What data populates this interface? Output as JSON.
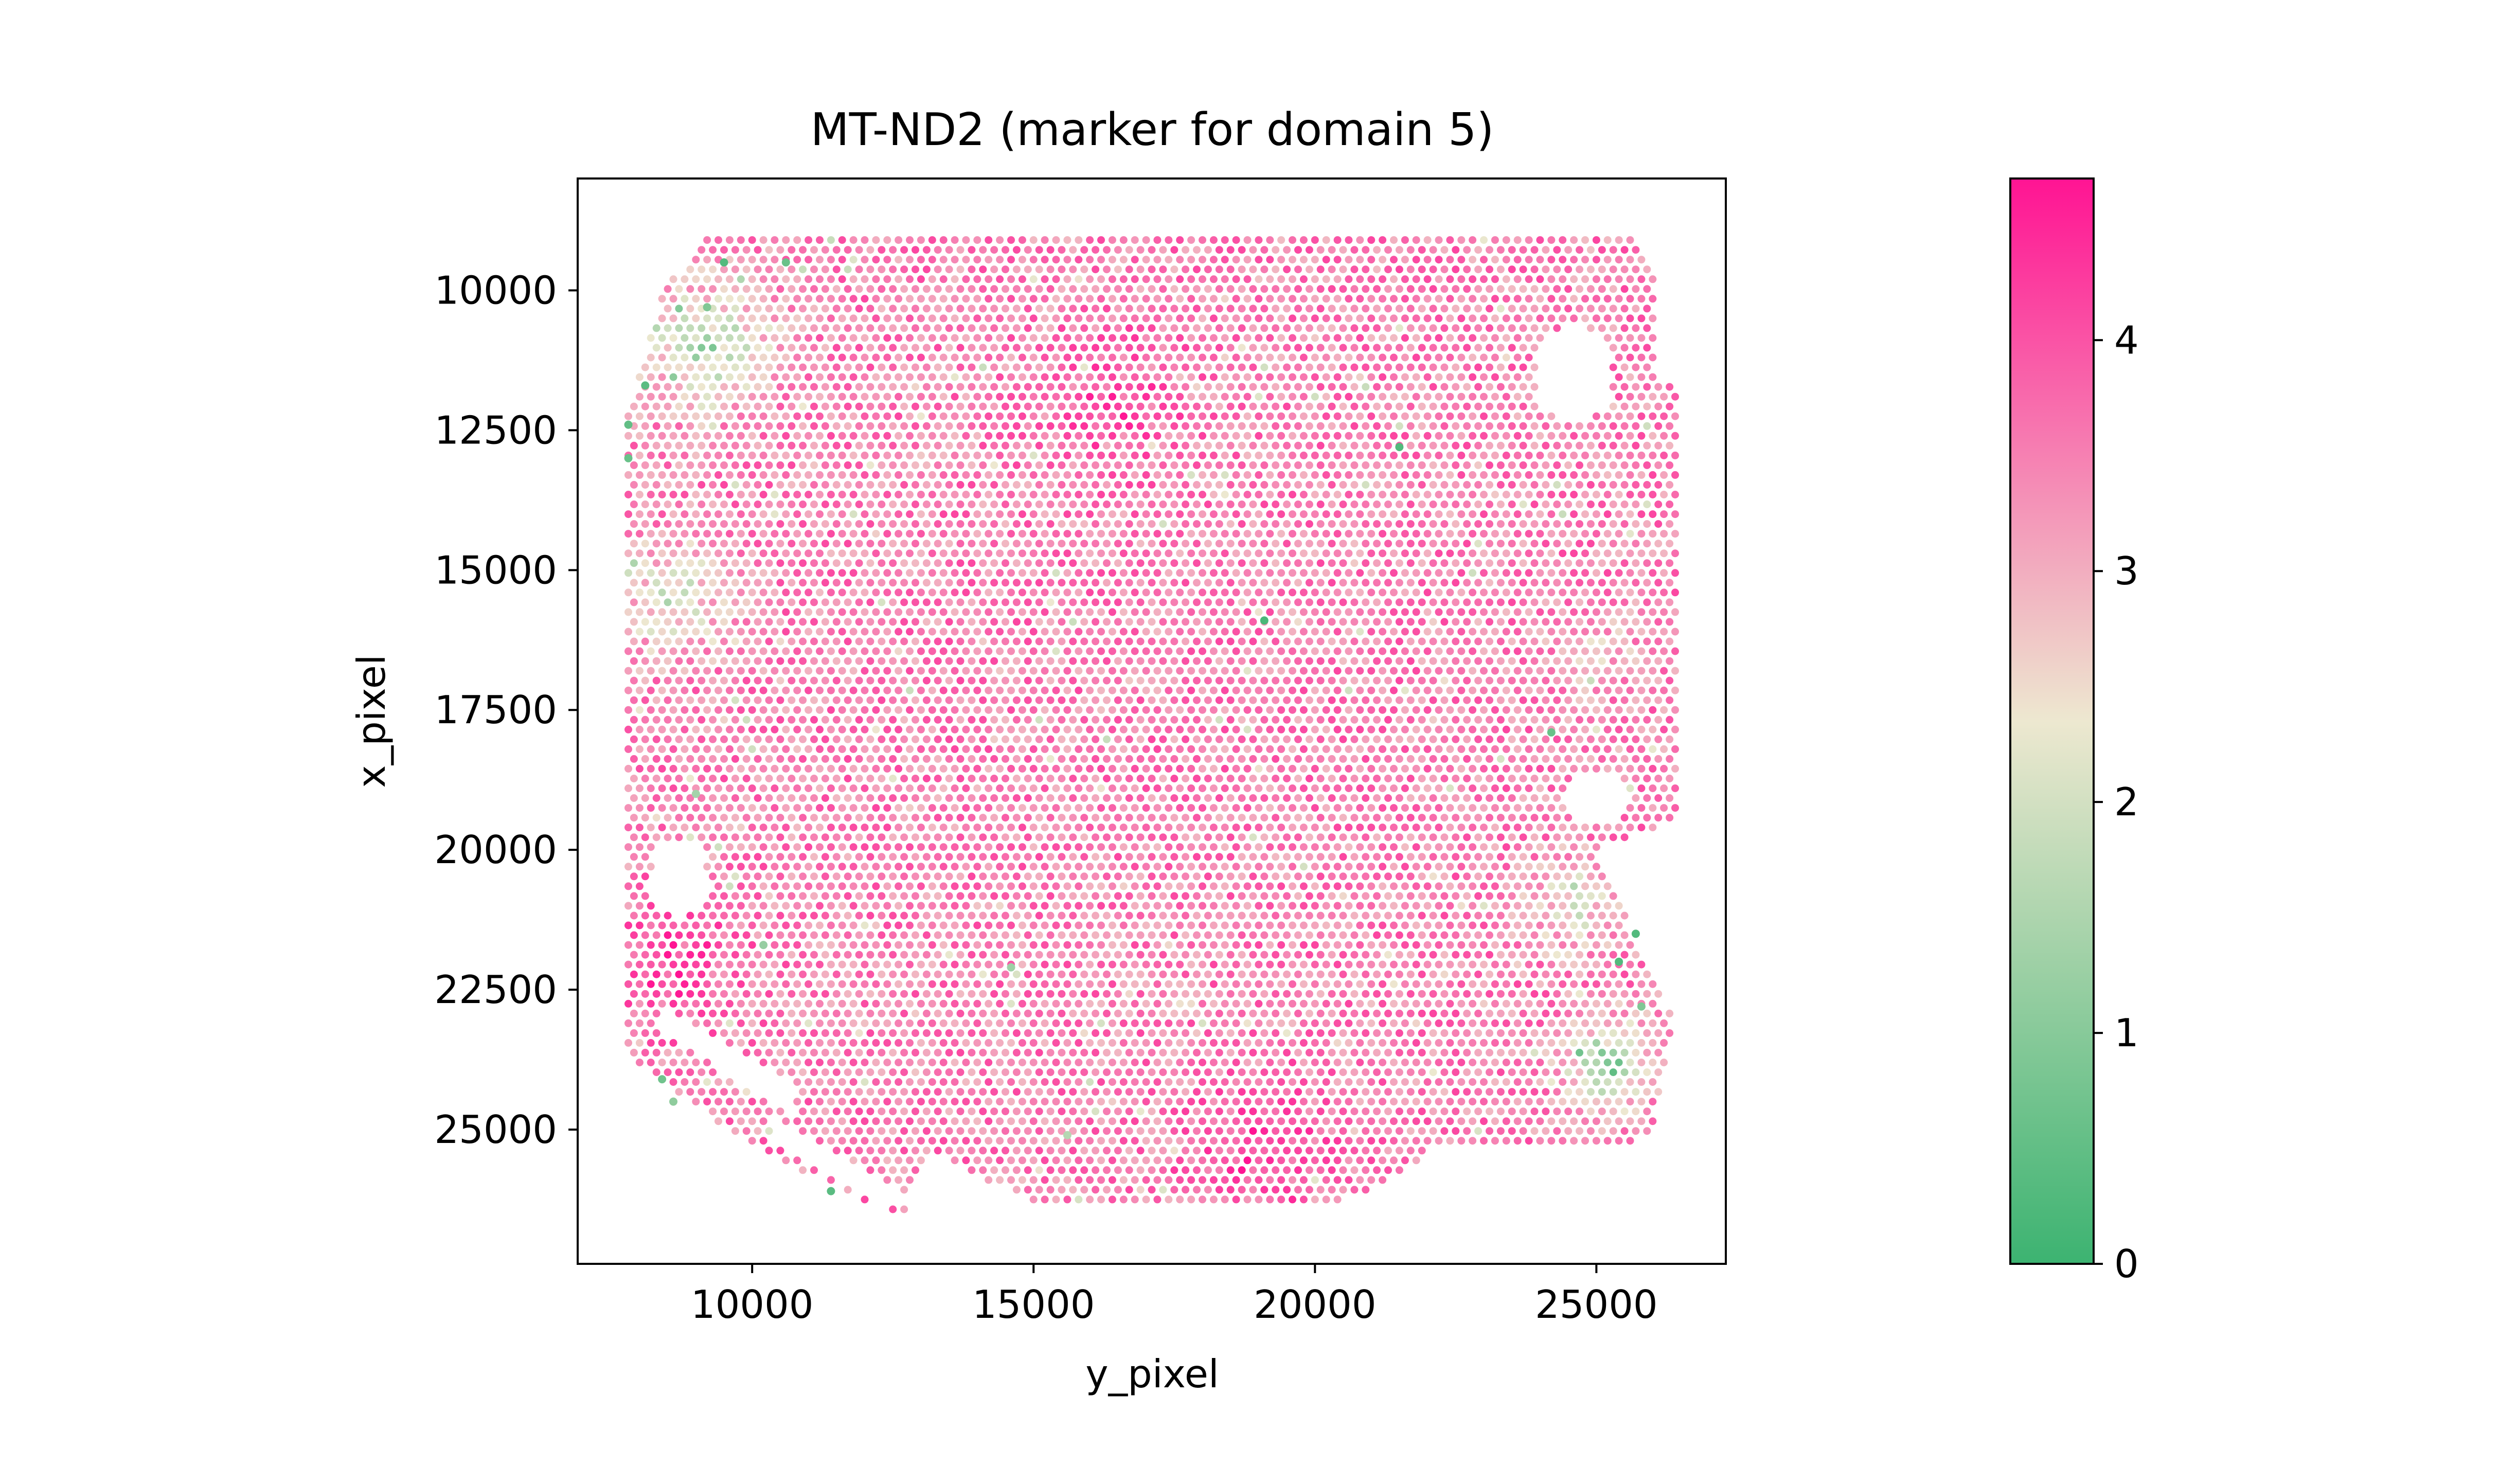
{
  "chart_data": {
    "type": "scatter",
    "title": "MT-ND2 (marker for domain 5)",
    "xlabel": "y_pixel",
    "ylabel": "x_pixel",
    "x_ticks": [
      "10000",
      "15000",
      "20000",
      "25000"
    ],
    "y_ticks": [
      "10000",
      "12500",
      "15000",
      "17500",
      "20000",
      "22500",
      "25000"
    ],
    "xlim": [
      6900,
      27300
    ],
    "ylim": [
      27400,
      8000
    ],
    "y_inverted": true,
    "grid": false,
    "colorbar": {
      "min": 0,
      "max": 4.7,
      "ticks": [
        "0",
        "1",
        "2",
        "3",
        "4"
      ],
      "colors": [
        "#3cb371",
        "#ede8d0",
        "#ff1493"
      ]
    },
    "spot_lattice": {
      "col_spacing_y": 200,
      "row_spacing_x": 175,
      "y_min": 7800,
      "y_max": 26400,
      "x_min": 9100,
      "x_max": 26600,
      "base_value": 3.5
    },
    "expression_gradients": [
      {
        "y": 9200,
        "x": 11000,
        "value": 1.9,
        "radius": 2400
      },
      {
        "y": 8600,
        "x": 15500,
        "value": 2.3,
        "radius": 2200
      },
      {
        "y": 25200,
        "x": 23800,
        "value": 1.6,
        "radius": 1600
      },
      {
        "y": 24600,
        "x": 21000,
        "value": 2.5,
        "radius": 1800
      },
      {
        "y": 25000,
        "x": 16500,
        "value": 2.8,
        "radius": 1500
      },
      {
        "y": 19000,
        "x": 25400,
        "value": 4.2,
        "radius": 2500
      },
      {
        "y": 8600,
        "x": 22000,
        "value": 4.2,
        "radius": 2200
      },
      {
        "y": 16500,
        "x": 12000,
        "value": 4.0,
        "radius": 2500
      }
    ],
    "low_expression_spots": [
      {
        "y": 9500,
        "x": 9500,
        "value": 0.3
      },
      {
        "y": 10600,
        "x": 9500,
        "value": 0.6
      },
      {
        "y": 9200,
        "x": 10300,
        "value": 0.9
      },
      {
        "y": 8100,
        "x": 11700,
        "value": 0.4
      },
      {
        "y": 7800,
        "x": 12400,
        "value": 0.5
      },
      {
        "y": 7800,
        "x": 13000,
        "value": 0.6
      },
      {
        "y": 21500,
        "x": 12800,
        "value": 0.3
      },
      {
        "y": 19100,
        "x": 15900,
        "value": 0.2
      },
      {
        "y": 24200,
        "x": 17900,
        "value": 0.6
      },
      {
        "y": 25700,
        "x": 21500,
        "value": 0.3
      },
      {
        "y": 25400,
        "x": 22000,
        "value": 0.3
      },
      {
        "y": 25800,
        "x": 22800,
        "value": 0.9
      },
      {
        "y": 11400,
        "x": 26100,
        "value": 0.4
      },
      {
        "y": 8400,
        "x": 24100,
        "value": 0.7
      },
      {
        "y": 8600,
        "x": 24500,
        "value": 1.1
      },
      {
        "y": 10200,
        "x": 21700,
        "value": 1.2
      },
      {
        "y": 14600,
        "x": 22100,
        "value": 1.3
      },
      {
        "y": 9000,
        "x": 19000,
        "value": 1.4
      },
      {
        "y": 15600,
        "x": 25100,
        "value": 1.6
      }
    ]
  }
}
